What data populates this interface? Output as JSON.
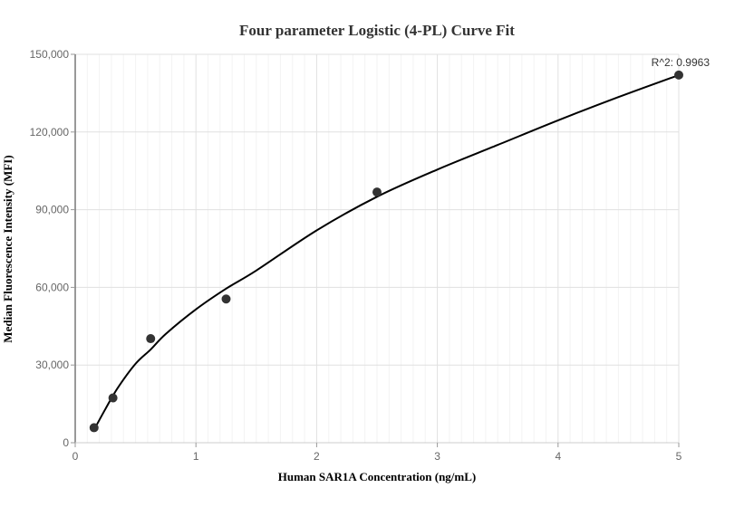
{
  "chart_data": {
    "type": "scatter",
    "title": "Four parameter Logistic (4-PL) Curve Fit",
    "xlabel": "Human SAR1A Concentration (ng/mL)",
    "ylabel": "Median Fluorescence Intensity (MFI)",
    "xlim": [
      0,
      5
    ],
    "ylim": [
      0,
      150000
    ],
    "x_ticks": [
      0,
      1,
      2,
      3,
      4,
      5
    ],
    "x_tick_labels": [
      "0",
      "1",
      "2",
      "3",
      "4",
      "5"
    ],
    "y_ticks": [
      0,
      30000,
      60000,
      90000,
      120000,
      150000
    ],
    "y_tick_labels": [
      "0",
      "30,000",
      "60,000",
      "90,000",
      "120,000",
      "150,000"
    ],
    "grid": true,
    "annotation": "R^2: 0.9963",
    "series": [
      {
        "kind": "points",
        "color": "#333333",
        "x": [
          0.156,
          0.3125,
          0.625,
          1.25,
          2.5,
          5
        ],
        "y": [
          5800,
          17300,
          40200,
          55500,
          96800,
          142000
        ]
      },
      {
        "kind": "fit-curve",
        "color": "#000000",
        "x": [
          0.156,
          0.25,
          0.35,
          0.5,
          0.625,
          0.75,
          1.0,
          1.25,
          1.5,
          2.0,
          2.5,
          3.0,
          3.5,
          4.0,
          4.5,
          5.0
        ],
        "y": [
          5000,
          13000,
          21000,
          30500,
          36000,
          42000,
          51500,
          59500,
          66500,
          82000,
          95000,
          105500,
          115000,
          124500,
          133500,
          142000
        ]
      }
    ]
  }
}
